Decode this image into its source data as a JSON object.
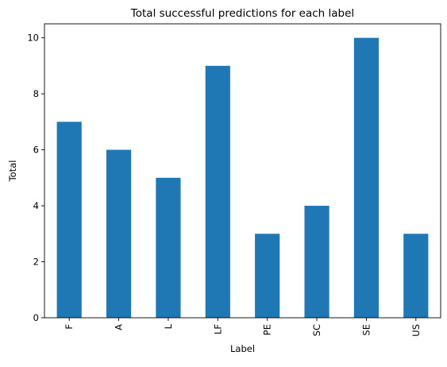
{
  "chart_data": {
    "type": "bar",
    "title": "Total successful predictions for each label",
    "xlabel": "Label",
    "ylabel": "Total",
    "categories": [
      "F",
      "A",
      "L",
      "LF",
      "PE",
      "SC",
      "SE",
      "US"
    ],
    "values": [
      7,
      6,
      5,
      9,
      3,
      4,
      10,
      3
    ],
    "ylim": [
      0,
      10.5
    ],
    "yticks": [
      0,
      2,
      4,
      6,
      8,
      10
    ],
    "grid": false,
    "bar_color": "#1f77b4"
  }
}
